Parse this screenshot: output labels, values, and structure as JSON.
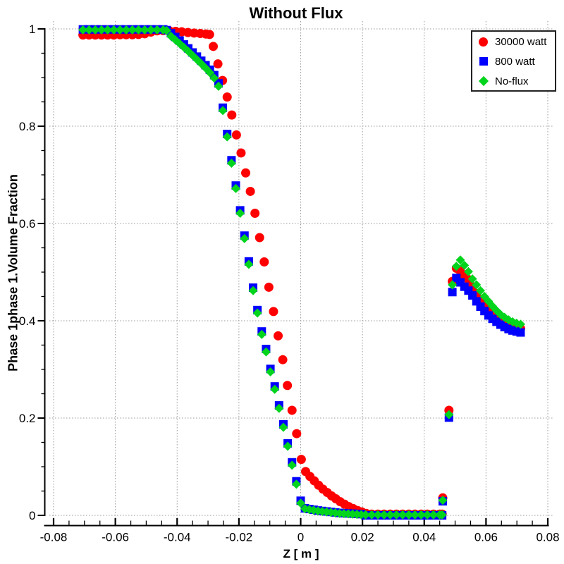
{
  "window": {
    "background": "#ffffff"
  },
  "chart_data": {
    "type": "scatter",
    "title": "Without Flux",
    "xlabel": "Z [ m ]",
    "ylabel": "Phase 1phase 1.Volume Fraction",
    "xlim": [
      -0.08,
      0.08
    ],
    "ylim": [
      0,
      1
    ],
    "grid": "dotted-major",
    "grid_color": "#9a9a9a",
    "axis_color": "#000000",
    "x_ticks": {
      "values": [
        -0.08,
        -0.06,
        -0.04,
        -0.02,
        0,
        0.02,
        0.04,
        0.06,
        0.08
      ],
      "labels": [
        "-0.08",
        "-0.06",
        "-0.04",
        "-0.02",
        "0",
        "0.02",
        "0.04",
        "0.06",
        "0.08"
      ]
    },
    "y_ticks": {
      "values": [
        0,
        0.2,
        0.4,
        0.6,
        0.8,
        1
      ],
      "labels": [
        "0",
        "0.2",
        "0.4",
        "0.6",
        "0.8",
        "1"
      ]
    },
    "x_minor_step": 0.005,
    "y_minor_step": 0.05,
    "legend": {
      "position": "top-right"
    },
    "series": [
      {
        "name": "30000 watt",
        "marker": "circle",
        "color": "#ff0000",
        "points": [
          [
            -0.0705,
            0.9875
          ],
          [
            -0.0685,
            0.9875
          ],
          [
            -0.0665,
            0.9875
          ],
          [
            -0.0645,
            0.9875
          ],
          [
            -0.0625,
            0.9875
          ],
          [
            -0.0605,
            0.9875
          ],
          [
            -0.0585,
            0.988
          ],
          [
            -0.0565,
            0.988
          ],
          [
            -0.0545,
            0.988
          ],
          [
            -0.0525,
            0.9885
          ],
          [
            -0.0505,
            0.99
          ],
          [
            -0.0485,
            0.9935
          ],
          [
            -0.0465,
            0.996
          ],
          [
            -0.0445,
            0.9965
          ],
          [
            -0.0425,
            0.996
          ],
          [
            -0.0405,
            0.995
          ],
          [
            -0.0385,
            0.994
          ],
          [
            -0.0365,
            0.9925
          ],
          [
            -0.0345,
            0.9915
          ],
          [
            -0.0325,
            0.9905
          ],
          [
            -0.0307,
            0.9895
          ],
          [
            -0.0295,
            0.9885
          ],
          [
            -0.0283,
            0.964
          ],
          [
            -0.0268,
            0.928
          ],
          [
            -0.0253,
            0.894
          ],
          [
            -0.0238,
            0.86
          ],
          [
            -0.0223,
            0.823
          ],
          [
            -0.0208,
            0.782
          ],
          [
            -0.0193,
            0.745
          ],
          [
            -0.0178,
            0.704
          ],
          [
            -0.0163,
            0.666
          ],
          [
            -0.0148,
            0.621
          ],
          [
            -0.0133,
            0.571
          ],
          [
            -0.0118,
            0.521
          ],
          [
            -0.0103,
            0.469
          ],
          [
            -0.0088,
            0.419
          ],
          [
            -0.0073,
            0.369
          ],
          [
            -0.0058,
            0.32
          ],
          [
            -0.0043,
            0.267
          ],
          [
            -0.0028,
            0.216
          ],
          [
            -0.0013,
            0.168
          ],
          [
            0.0002,
            0.115
          ],
          [
            0.0016,
            0.09
          ],
          [
            0.003,
            0.08
          ],
          [
            0.0044,
            0.071
          ],
          [
            0.0058,
            0.062
          ],
          [
            0.0072,
            0.054
          ],
          [
            0.0086,
            0.047
          ],
          [
            0.01,
            0.04
          ],
          [
            0.0114,
            0.034
          ],
          [
            0.0128,
            0.028
          ],
          [
            0.0142,
            0.023
          ],
          [
            0.0156,
            0.018
          ],
          [
            0.017,
            0.014
          ],
          [
            0.0184,
            0.01
          ],
          [
            0.0198,
            0.007
          ],
          [
            0.0212,
            0.004
          ],
          [
            0.023,
            0.0025
          ],
          [
            0.025,
            0.0025
          ],
          [
            0.027,
            0.0025
          ],
          [
            0.029,
            0.0025
          ],
          [
            0.031,
            0.0025
          ],
          [
            0.033,
            0.0025
          ],
          [
            0.035,
            0.0025
          ],
          [
            0.037,
            0.0025
          ],
          [
            0.039,
            0.0025
          ],
          [
            0.041,
            0.0025
          ],
          [
            0.043,
            0.0025
          ],
          [
            0.045,
            0.0025
          ],
          [
            0.0458,
            0.0025
          ],
          [
            0.046,
            0.036
          ],
          [
            0.048,
            0.216
          ],
          [
            0.0491,
            0.481
          ],
          [
            0.0504,
            0.508
          ],
          [
            0.0517,
            0.502
          ],
          [
            0.053,
            0.493
          ],
          [
            0.0543,
            0.485
          ],
          [
            0.0556,
            0.47
          ],
          [
            0.0569,
            0.456
          ],
          [
            0.0582,
            0.444
          ],
          [
            0.0595,
            0.433
          ],
          [
            0.0608,
            0.424
          ],
          [
            0.0621,
            0.416
          ],
          [
            0.0634,
            0.409
          ],
          [
            0.0647,
            0.403
          ],
          [
            0.066,
            0.398
          ],
          [
            0.0673,
            0.394
          ],
          [
            0.0686,
            0.39
          ],
          [
            0.0699,
            0.387
          ],
          [
            0.0712,
            0.384
          ]
        ]
      },
      {
        "name": "800 watt",
        "marker": "square",
        "color": "#0000ff",
        "points": [
          [
            -0.0705,
            0.999
          ],
          [
            -0.0685,
            0.999
          ],
          [
            -0.0665,
            0.999
          ],
          [
            -0.0645,
            0.999
          ],
          [
            -0.0625,
            0.999
          ],
          [
            -0.0605,
            0.999
          ],
          [
            -0.0585,
            0.999
          ],
          [
            -0.0565,
            0.999
          ],
          [
            -0.0545,
            0.999
          ],
          [
            -0.0525,
            0.999
          ],
          [
            -0.0505,
            0.999
          ],
          [
            -0.0485,
            0.999
          ],
          [
            -0.0465,
            0.999
          ],
          [
            -0.0445,
            0.999
          ],
          [
            -0.0434,
            0.9975
          ],
          [
            -0.042,
            0.991
          ],
          [
            -0.0406,
            0.9835
          ],
          [
            -0.0392,
            0.976
          ],
          [
            -0.0378,
            0.968
          ],
          [
            -0.0364,
            0.96
          ],
          [
            -0.035,
            0.9515
          ],
          [
            -0.0336,
            0.943
          ],
          [
            -0.0322,
            0.9345
          ],
          [
            -0.0308,
            0.9255
          ],
          [
            -0.0294,
            0.916
          ],
          [
            -0.028,
            0.905
          ],
          [
            -0.0266,
            0.888
          ],
          [
            -0.0252,
            0.838
          ],
          [
            -0.0238,
            0.784
          ],
          [
            -0.0224,
            0.73
          ],
          [
            -0.021,
            0.678
          ],
          [
            -0.0196,
            0.627
          ],
          [
            -0.0182,
            0.575
          ],
          [
            -0.0168,
            0.522
          ],
          [
            -0.0154,
            0.468
          ],
          [
            -0.014,
            0.422
          ],
          [
            -0.0126,
            0.378
          ],
          [
            -0.0112,
            0.342
          ],
          [
            -0.0098,
            0.301
          ],
          [
            -0.0084,
            0.265
          ],
          [
            -0.007,
            0.226
          ],
          [
            -0.0056,
            0.187
          ],
          [
            -0.0042,
            0.148
          ],
          [
            -0.0028,
            0.109
          ],
          [
            -0.0014,
            0.07
          ],
          [
            0.0,
            0.03
          ],
          [
            0.0014,
            0.0145
          ],
          [
            0.0028,
            0.013
          ],
          [
            0.0042,
            0.0115
          ],
          [
            0.0056,
            0.01
          ],
          [
            0.007,
            0.009
          ],
          [
            0.0084,
            0.008
          ],
          [
            0.0098,
            0.007
          ],
          [
            0.0112,
            0.006
          ],
          [
            0.0126,
            0.005
          ],
          [
            0.014,
            0.0045
          ],
          [
            0.0154,
            0.004
          ],
          [
            0.0168,
            0.0035
          ],
          [
            0.0182,
            0.003
          ],
          [
            0.0196,
            0.0025
          ],
          [
            0.021,
            0.0
          ],
          [
            0.023,
            0.0
          ],
          [
            0.025,
            0.0
          ],
          [
            0.027,
            0.0
          ],
          [
            0.029,
            0.0
          ],
          [
            0.031,
            0.0
          ],
          [
            0.033,
            0.0
          ],
          [
            0.035,
            0.0
          ],
          [
            0.037,
            0.0
          ],
          [
            0.039,
            0.0
          ],
          [
            0.041,
            0.0
          ],
          [
            0.043,
            0.0
          ],
          [
            0.045,
            0.0
          ],
          [
            0.0458,
            0.0
          ],
          [
            0.046,
            0.029
          ],
          [
            0.048,
            0.201
          ],
          [
            0.0491,
            0.459
          ],
          [
            0.0504,
            0.488
          ],
          [
            0.0517,
            0.479
          ],
          [
            0.053,
            0.47
          ],
          [
            0.0543,
            0.462
          ],
          [
            0.0556,
            0.452
          ],
          [
            0.0569,
            0.44
          ],
          [
            0.0582,
            0.429
          ],
          [
            0.0595,
            0.42
          ],
          [
            0.0608,
            0.411
          ],
          [
            0.0621,
            0.404
          ],
          [
            0.0634,
            0.398
          ],
          [
            0.0647,
            0.392
          ],
          [
            0.066,
            0.387
          ],
          [
            0.0673,
            0.383
          ],
          [
            0.0686,
            0.38
          ],
          [
            0.0699,
            0.378
          ],
          [
            0.0712,
            0.376
          ]
        ]
      },
      {
        "name": "No-flux",
        "marker": "diamond",
        "color": "#00d41c",
        "points": [
          [
            -0.0705,
            0.998
          ],
          [
            -0.0685,
            0.998
          ],
          [
            -0.0665,
            0.998
          ],
          [
            -0.0645,
            0.998
          ],
          [
            -0.0625,
            0.998
          ],
          [
            -0.0605,
            0.998
          ],
          [
            -0.0585,
            0.998
          ],
          [
            -0.0565,
            0.998
          ],
          [
            -0.0545,
            0.998
          ],
          [
            -0.0525,
            0.998
          ],
          [
            -0.0505,
            0.998
          ],
          [
            -0.0485,
            0.998
          ],
          [
            -0.0465,
            0.998
          ],
          [
            -0.0445,
            0.998
          ],
          [
            -0.0434,
            0.9965
          ],
          [
            -0.042,
            0.985
          ],
          [
            -0.0406,
            0.9775
          ],
          [
            -0.0392,
            0.97
          ],
          [
            -0.0378,
            0.962
          ],
          [
            -0.0364,
            0.954
          ],
          [
            -0.035,
            0.9455
          ],
          [
            -0.0336,
            0.937
          ],
          [
            -0.0322,
            0.9285
          ],
          [
            -0.0308,
            0.9195
          ],
          [
            -0.0294,
            0.91
          ],
          [
            -0.028,
            0.899
          ],
          [
            -0.0266,
            0.882
          ],
          [
            -0.0252,
            0.832
          ],
          [
            -0.0238,
            0.778
          ],
          [
            -0.0224,
            0.724
          ],
          [
            -0.021,
            0.672
          ],
          [
            -0.0196,
            0.621
          ],
          [
            -0.0182,
            0.569
          ],
          [
            -0.0168,
            0.516
          ],
          [
            -0.0154,
            0.462
          ],
          [
            -0.014,
            0.416
          ],
          [
            -0.0126,
            0.372
          ],
          [
            -0.0112,
            0.336
          ],
          [
            -0.0098,
            0.295
          ],
          [
            -0.0084,
            0.259
          ],
          [
            -0.007,
            0.22
          ],
          [
            -0.0056,
            0.181
          ],
          [
            -0.0042,
            0.142
          ],
          [
            -0.0028,
            0.103
          ],
          [
            -0.0014,
            0.064
          ],
          [
            0.0,
            0.025
          ],
          [
            0.0014,
            0.0135
          ],
          [
            0.0028,
            0.012
          ],
          [
            0.0042,
            0.0105
          ],
          [
            0.0056,
            0.009
          ],
          [
            0.007,
            0.008
          ],
          [
            0.0084,
            0.007
          ],
          [
            0.0098,
            0.006
          ],
          [
            0.0112,
            0.005
          ],
          [
            0.0126,
            0.004
          ],
          [
            0.014,
            0.0035
          ],
          [
            0.0154,
            0.003
          ],
          [
            0.0168,
            0.0025
          ],
          [
            0.0182,
            0.002
          ],
          [
            0.0196,
            0.0015
          ],
          [
            0.021,
            0.001
          ],
          [
            0.023,
            0.001
          ],
          [
            0.025,
            0.001
          ],
          [
            0.027,
            0.001
          ],
          [
            0.029,
            0.001
          ],
          [
            0.031,
            0.001
          ],
          [
            0.033,
            0.001
          ],
          [
            0.035,
            0.001
          ],
          [
            0.037,
            0.001
          ],
          [
            0.039,
            0.001
          ],
          [
            0.041,
            0.001
          ],
          [
            0.043,
            0.001
          ],
          [
            0.045,
            0.001
          ],
          [
            0.0458,
            0.001
          ],
          [
            0.046,
            0.031
          ],
          [
            0.048,
            0.207
          ],
          [
            0.0491,
            0.474
          ],
          [
            0.0504,
            0.512
          ],
          [
            0.0517,
            0.525
          ],
          [
            0.053,
            0.514
          ],
          [
            0.0543,
            0.501
          ],
          [
            0.0556,
            0.486
          ],
          [
            0.0569,
            0.474
          ],
          [
            0.0582,
            0.462
          ],
          [
            0.0595,
            0.45
          ],
          [
            0.0608,
            0.44
          ],
          [
            0.0621,
            0.43
          ],
          [
            0.0634,
            0.421
          ],
          [
            0.0647,
            0.413
          ],
          [
            0.066,
            0.407
          ],
          [
            0.0673,
            0.402
          ],
          [
            0.0686,
            0.398
          ],
          [
            0.0699,
            0.395
          ],
          [
            0.0712,
            0.393
          ]
        ]
      }
    ]
  }
}
